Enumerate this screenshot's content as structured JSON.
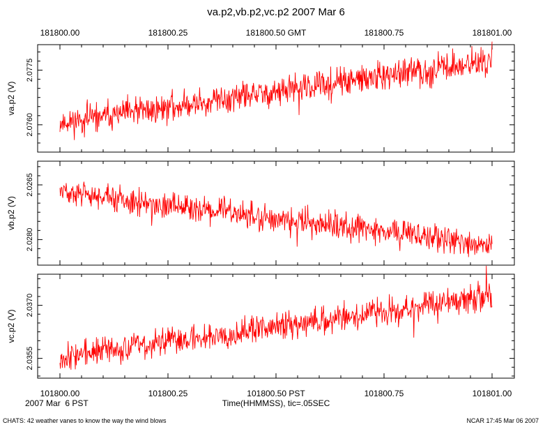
{
  "title": "va.p2,vb.p2,vc.p2 2007 Mar 6",
  "top_axis": {
    "ticks": [
      "181800.00",
      "181800.25",
      "181800.50 GMT",
      "181800.75",
      "181801.00"
    ]
  },
  "bottom_axis": {
    "ticks": [
      "101800.00",
      "101800.25",
      "101800.50 PST",
      "101800.75",
      "101801.00"
    ],
    "date_label": "2007 Mar  6 PST",
    "xlabel": "Time(HHMMSS), tic=.05SEC"
  },
  "footer": {
    "left": "CHATS: 42 weather vanes to know the way the wind blows",
    "right": "NCAR 17:45 Mar 06 2007"
  },
  "colors": {
    "trace": "#ff0000",
    "axis": "#000000"
  },
  "chart_data": [
    {
      "type": "line",
      "ylabel": "va.p2 (V)",
      "ytick_labels": [
        "2.0760",
        "2.0775"
      ],
      "ytick_values": [
        2.076,
        2.0775
      ],
      "ylim": [
        2.07525,
        2.0782
      ],
      "xlim": [
        0,
        1
      ],
      "series": [
        {
          "start": 2.07605,
          "end": 2.07775,
          "noise": 0.0003,
          "seed": 11
        }
      ]
    },
    {
      "type": "line",
      "ylabel": "vb.p2 (V)",
      "ytick_labels": [
        "2.0280",
        "2.0265"
      ],
      "ytick_values": [
        2.028,
        2.0265
      ],
      "ylim": [
        2.0287,
        2.02585
      ],
      "xlim": [
        0,
        1
      ],
      "series": [
        {
          "start": 2.0267,
          "end": 2.02815,
          "noise": 0.00028,
          "seed": 23
        }
      ]
    },
    {
      "type": "line",
      "ylabel": "vc.p2 (V)",
      "ytick_labels": [
        "2.0370",
        "2.0355"
      ],
      "ytick_values": [
        2.037,
        2.0355
      ],
      "ylim": [
        2.03494,
        2.03788
      ],
      "xlim": [
        0,
        1
      ],
      "series": [
        {
          "start": 2.03555,
          "end": 2.03725,
          "noise": 0.0003,
          "seed": 37
        }
      ]
    }
  ]
}
